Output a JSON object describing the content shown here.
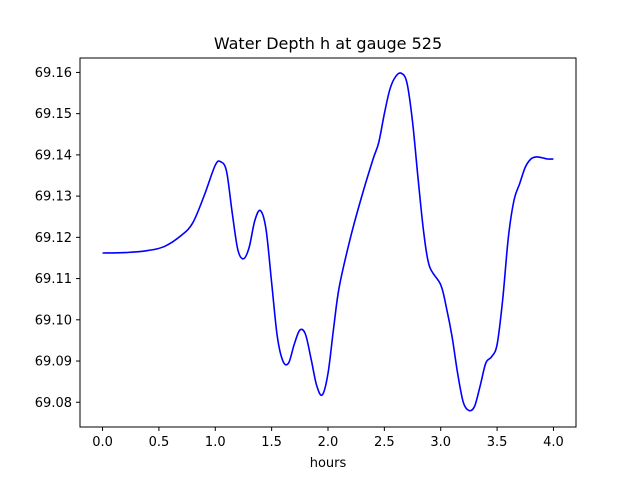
{
  "chart_data": {
    "type": "line",
    "title": "Water Depth h at gauge 525",
    "xlabel": "hours",
    "ylabel": "",
    "xlim": [
      -0.2,
      4.2
    ],
    "ylim": [
      69.074,
      69.1635
    ],
    "xticks": [
      0.0,
      0.5,
      1.0,
      1.5,
      2.0,
      2.5,
      3.0,
      3.5,
      4.0
    ],
    "xtick_labels": [
      "0.0",
      "0.5",
      "1.0",
      "1.5",
      "2.0",
      "2.5",
      "3.0",
      "3.5",
      "4.0"
    ],
    "yticks": [
      69.08,
      69.09,
      69.1,
      69.11,
      69.12,
      69.13,
      69.14,
      69.15,
      69.16
    ],
    "ytick_labels": [
      "69.08",
      "69.09",
      "69.10",
      "69.11",
      "69.12",
      "69.13",
      "69.14",
      "69.15",
      "69.16"
    ],
    "grid": false,
    "series": [
      {
        "name": "",
        "color": "#0000ff",
        "x": [
          0.0,
          0.2,
          0.4,
          0.55,
          0.7,
          0.8,
          0.9,
          1.0,
          1.05,
          1.1,
          1.15,
          1.2,
          1.25,
          1.3,
          1.35,
          1.4,
          1.45,
          1.5,
          1.55,
          1.6,
          1.65,
          1.7,
          1.75,
          1.8,
          1.85,
          1.9,
          1.95,
          2.0,
          2.05,
          2.1,
          2.2,
          2.3,
          2.4,
          2.45,
          2.5,
          2.55,
          2.6,
          2.65,
          2.7,
          2.75,
          2.8,
          2.85,
          2.9,
          3.0,
          3.05,
          3.1,
          3.15,
          3.2,
          3.25,
          3.3,
          3.35,
          3.4,
          3.45,
          3.5,
          3.55,
          3.6,
          3.65,
          3.7,
          3.75,
          3.8,
          3.85,
          3.9,
          3.95,
          4.0
        ],
        "y": [
          69.1162,
          69.1163,
          69.1168,
          69.1178,
          69.1205,
          69.1235,
          69.13,
          69.1375,
          69.1383,
          69.136,
          69.126,
          69.117,
          69.1148,
          69.1175,
          69.124,
          69.1265,
          69.122,
          69.109,
          69.096,
          69.09,
          69.0895,
          69.094,
          69.0975,
          69.0965,
          69.0905,
          69.084,
          69.0818,
          69.087,
          69.098,
          69.108,
          69.12,
          69.13,
          69.139,
          69.143,
          69.15,
          69.156,
          69.159,
          69.1598,
          69.1575,
          69.148,
          69.134,
          69.121,
          69.113,
          69.1085,
          69.103,
          69.096,
          69.087,
          69.08,
          69.078,
          69.079,
          69.084,
          69.0895,
          69.091,
          69.094,
          69.105,
          69.12,
          69.129,
          69.133,
          69.137,
          69.139,
          69.1395,
          69.1393,
          69.139,
          69.139
        ]
      }
    ]
  }
}
